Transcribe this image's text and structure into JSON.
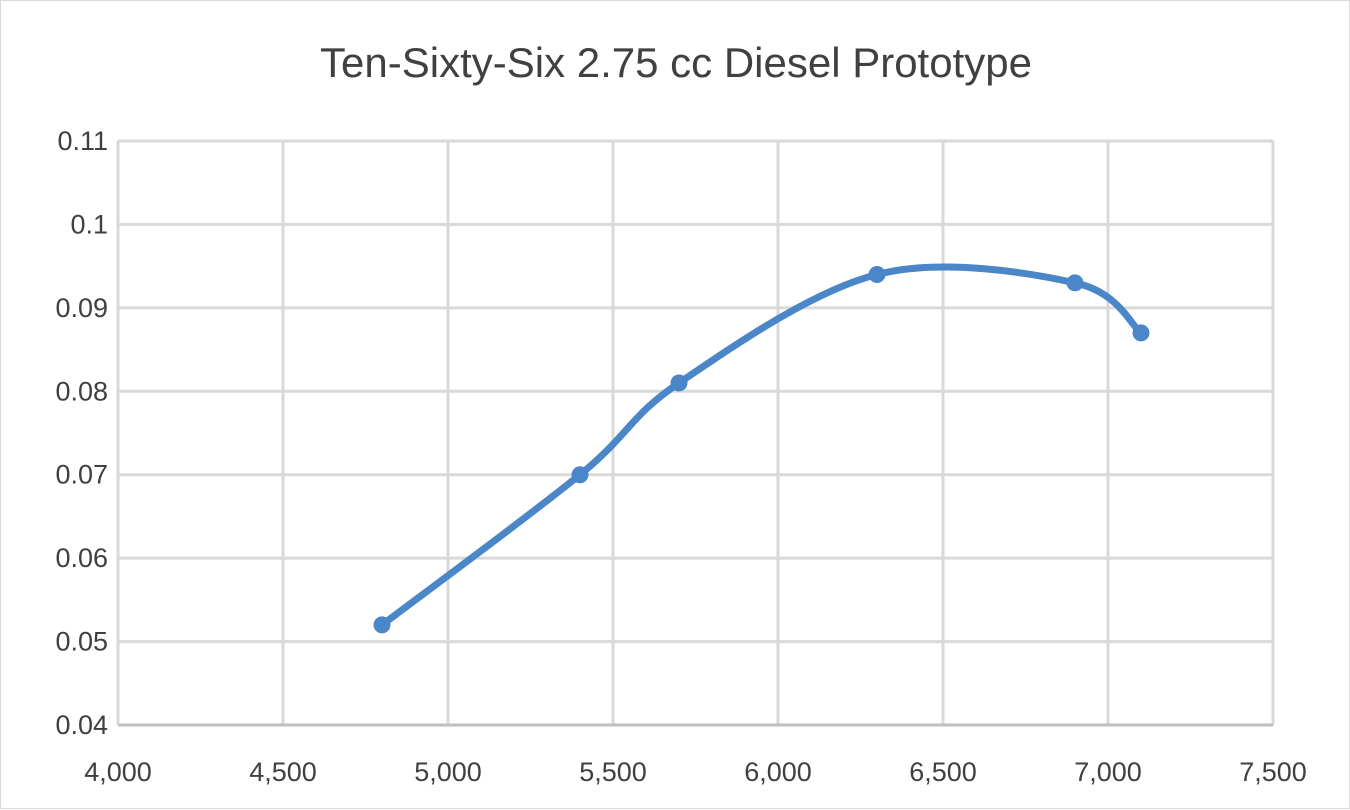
{
  "chart_data": {
    "type": "scatter",
    "title": "Ten-Sixty-Six 2.75 cc Diesel Prototype",
    "xlabel": "",
    "ylabel": "",
    "xlim": [
      4000,
      7500
    ],
    "ylim": [
      0.04,
      0.11
    ],
    "x_ticks": [
      4000,
      4500,
      5000,
      5500,
      6000,
      6500,
      7000,
      7500
    ],
    "x_tick_labels": [
      "4,000",
      "4,500",
      "5,000",
      "5,500",
      "6,000",
      "6,500",
      "7,000",
      "7,500"
    ],
    "y_ticks": [
      0.04,
      0.05,
      0.06,
      0.07,
      0.08,
      0.09,
      0.1,
      0.11
    ],
    "y_tick_labels": [
      "0.04",
      "0.05",
      "0.06",
      "0.07",
      "0.08",
      "0.09",
      "0.1",
      "0.11"
    ],
    "grid": true,
    "smooth": true,
    "series": [
      {
        "x": [
          4800,
          5400,
          5700,
          6300,
          6900,
          7100
        ],
        "y": [
          0.052,
          0.07,
          0.081,
          0.094,
          0.093,
          0.087
        ],
        "color": "#4a86c8"
      }
    ]
  }
}
